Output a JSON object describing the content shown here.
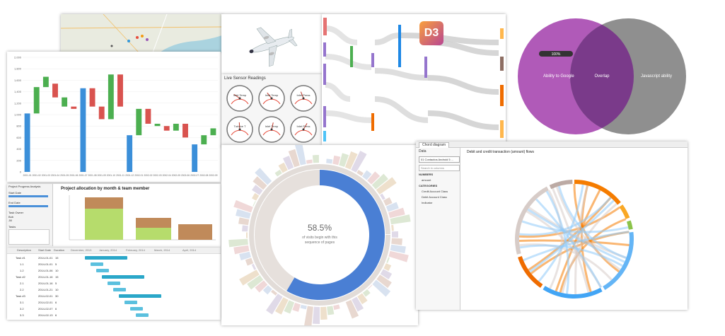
{
  "waterfall": {
    "y_ticks": [
      "2,000",
      "1,800",
      "1,600",
      "1,400",
      "1,200",
      "1,000",
      "800",
      "600",
      "400",
      "200",
      "0"
    ],
    "x_labels": [
      "2001-01",
      "2001-02",
      "2001-03",
      "2001-04",
      "2001-05",
      "2001-06",
      "2001-07",
      "2001-08",
      "2001-09",
      "2001-10",
      "2001-11",
      "2001-12",
      "2002-01",
      "2002-02",
      "2002-03",
      "2002-04",
      "2002-05",
      "2002-06",
      "2002-07",
      "2002-08",
      "2002-09"
    ],
    "colors": {
      "total": "#3b8fd9",
      "up": "#4caf50",
      "down": "#d9534f"
    }
  },
  "sensor": {
    "title": "Live Sensor Readings",
    "gauges": [
      "Inlet Temp",
      "Inlet Temp",
      "Inlet Press",
      "Turbine T",
      "Inlet Temp",
      "Inlet Press"
    ]
  },
  "sankey": {
    "logo": "D3",
    "node_color": "#7b5ea7"
  },
  "venn": {
    "left": "Ability to Google",
    "center": "Overlap",
    "right": "Javascript ability",
    "progress": "100%",
    "colors": {
      "left": "#b05ab8",
      "right": "#8f8f8f",
      "overlap": "#7a3a8a"
    }
  },
  "project": {
    "window_title": "Project Progress Analysis",
    "chart_title": "Project allocation by month & team member",
    "filters": [
      "Start Date",
      "End Date",
      "Task Owner",
      "Tasks"
    ],
    "owners": [
      "Bob",
      "Jill"
    ]
  },
  "gantt": {
    "headers": [
      "Description",
      "Start Date",
      "Duration"
    ],
    "months": [
      "December, 2013",
      "January, 2014",
      "February, 2014",
      "March, 2014",
      "April, 2014"
    ],
    "rows": [
      {
        "name": "Task #1",
        "date": "2014-01-01",
        "dur": "15"
      },
      {
        "name": "1.1",
        "date": "2014-01-01",
        "dur": "5"
      },
      {
        "name": "1.2",
        "date": "2014-01-06",
        "dur": "10"
      },
      {
        "name": "Task #2",
        "date": "2014-01-16",
        "dur": "15"
      },
      {
        "name": "2.1",
        "date": "2014-01-16",
        "dur": "5"
      },
      {
        "name": "2.2",
        "date": "2014-01-21",
        "dur": "10"
      },
      {
        "name": "Task #3",
        "date": "2014-02-01",
        "dur": "30"
      },
      {
        "name": "3.1",
        "date": "2014-02-01",
        "dur": "6"
      },
      {
        "name": "3.2",
        "date": "2014-02-07",
        "dur": "6"
      },
      {
        "name": "3.3",
        "date": "2014-02-13",
        "dur": "6"
      }
    ]
  },
  "sunburst": {
    "pct": "58.5%",
    "line1": "of visits begin with this",
    "line2": "sequence of pages"
  },
  "chord": {
    "tab": "Chord diagram",
    "data_label": "Data",
    "source": "01 Contactos Android 5 ...",
    "search_placeholder": "Search in columns",
    "measures_header": "NUMBERS",
    "measure_item": "amount",
    "categories_header": "CATEGORIES",
    "category_items": [
      "Credit Account Class",
      "Debit Account Class",
      "Indicator"
    ],
    "title": "Debit and credit transaction (amount) flows"
  }
}
